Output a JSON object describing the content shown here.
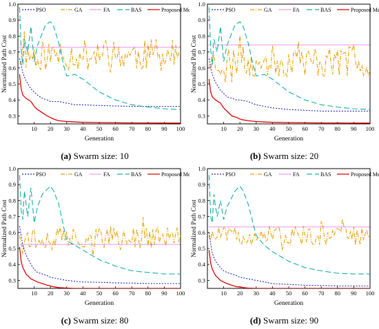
{
  "chart_data": [
    {
      "type": "line",
      "panel_label": "(a)",
      "caption": "Swarm size: 10",
      "xlabel": "Generation",
      "ylabel": "Normalized Path Cost",
      "xlim": [
        0,
        100
      ],
      "ylim": [
        0.25,
        1.0
      ],
      "xticks": [
        10,
        20,
        30,
        40,
        50,
        60,
        70,
        80,
        90,
        100
      ],
      "yticks": [
        0.3,
        0.4,
        0.5,
        0.6,
        0.7,
        0.8,
        0.9,
        1.0
      ],
      "legend_position": "top",
      "series": [
        {
          "name": "PSO",
          "color": "#1f1fbf",
          "dash": "2,2",
          "x": [
            1,
            2,
            3,
            5,
            8,
            10,
            12,
            15,
            18,
            20,
            25,
            30,
            35,
            40,
            50,
            60,
            70,
            80,
            90,
            100
          ],
          "y": [
            0.66,
            0.62,
            0.57,
            0.52,
            0.47,
            0.45,
            0.43,
            0.41,
            0.4,
            0.39,
            0.39,
            0.38,
            0.37,
            0.37,
            0.365,
            0.362,
            0.36,
            0.36,
            0.36,
            0.36
          ]
        },
        {
          "name": "GA",
          "color": "#e8a000",
          "dash": "6,2,1,2",
          "kind": "jagged",
          "start": 0.63,
          "mean": 0.68,
          "amp": 0.1,
          "seed": 11
        },
        {
          "name": "FA",
          "color": "#e040e0",
          "dash": "1,1",
          "x": [
            1,
            100
          ],
          "y": [
            0.73,
            0.73
          ]
        },
        {
          "name": "BAS",
          "color": "#10b0a0",
          "dash": "8,4",
          "x": [
            1,
            2,
            3,
            4,
            5,
            6,
            8,
            10,
            12,
            15,
            17,
            20,
            22,
            25,
            28,
            30,
            35,
            40,
            45,
            50,
            60,
            70,
            80,
            90,
            100
          ],
          "y": [
            0.98,
            0.72,
            0.62,
            0.78,
            0.74,
            0.7,
            0.86,
            0.64,
            0.74,
            0.82,
            0.87,
            0.89,
            0.86,
            0.76,
            0.62,
            0.55,
            0.56,
            0.53,
            0.49,
            0.45,
            0.4,
            0.37,
            0.355,
            0.345,
            0.34
          ]
        },
        {
          "name": "Proposed Method",
          "color": "#e00000",
          "dash": "",
          "x": [
            1,
            2,
            3,
            5,
            8,
            10,
            12,
            15,
            18,
            20,
            22,
            25,
            30,
            35,
            40,
            50,
            60,
            70,
            80,
            90,
            100
          ],
          "y": [
            0.56,
            0.47,
            0.43,
            0.41,
            0.39,
            0.36,
            0.34,
            0.32,
            0.3,
            0.29,
            0.28,
            0.27,
            0.265,
            0.262,
            0.26,
            0.258,
            0.257,
            0.256,
            0.256,
            0.255,
            0.255
          ]
        }
      ]
    },
    {
      "type": "line",
      "panel_label": "(b)",
      "caption": "Swarm size: 20",
      "xlabel": "Generation",
      "ylabel": "Normalized Path Cost",
      "xlim": [
        0,
        100
      ],
      "ylim": [
        0.25,
        1.0
      ],
      "xticks": [
        10,
        20,
        30,
        40,
        50,
        60,
        70,
        80,
        90,
        100
      ],
      "yticks": [
        0.3,
        0.4,
        0.5,
        0.6,
        0.7,
        0.8,
        0.9,
        1.0
      ],
      "legend_position": "top",
      "series": [
        {
          "name": "PSO",
          "color": "#1f1fbf",
          "dash": "2,2",
          "x": [
            1,
            2,
            3,
            5,
            8,
            10,
            12,
            15,
            18,
            20,
            25,
            30,
            35,
            40,
            50,
            60,
            70,
            80,
            90,
            100
          ],
          "y": [
            0.66,
            0.61,
            0.56,
            0.51,
            0.46,
            0.44,
            0.42,
            0.41,
            0.4,
            0.4,
            0.39,
            0.37,
            0.36,
            0.35,
            0.34,
            0.335,
            0.33,
            0.33,
            0.33,
            0.33
          ]
        },
        {
          "name": "GA",
          "color": "#e8a000",
          "dash": "6,2,1,2",
          "kind": "jagged",
          "start": 0.62,
          "mean": 0.64,
          "amp": 0.1,
          "seed": 23
        },
        {
          "name": "FA",
          "color": "#e040e0",
          "dash": "1,1",
          "x": [
            1,
            100
          ],
          "y": [
            0.745,
            0.745
          ]
        },
        {
          "name": "BAS",
          "color": "#10b0a0",
          "dash": "8,4",
          "x": [
            1,
            2,
            3,
            4,
            5,
            6,
            8,
            10,
            12,
            15,
            17,
            20,
            22,
            25,
            28,
            30,
            35,
            40,
            45,
            50,
            60,
            70,
            80,
            90,
            100
          ],
          "y": [
            0.98,
            0.72,
            0.62,
            0.78,
            0.74,
            0.7,
            0.86,
            0.64,
            0.74,
            0.82,
            0.87,
            0.89,
            0.86,
            0.76,
            0.62,
            0.55,
            0.56,
            0.53,
            0.49,
            0.45,
            0.4,
            0.37,
            0.355,
            0.345,
            0.34
          ]
        },
        {
          "name": "Proposed Method",
          "color": "#e00000",
          "dash": "",
          "x": [
            1,
            2,
            3,
            5,
            8,
            10,
            12,
            15,
            18,
            20,
            22,
            25,
            30,
            35,
            40,
            50,
            60,
            70,
            80,
            90,
            100
          ],
          "y": [
            0.53,
            0.45,
            0.42,
            0.4,
            0.38,
            0.35,
            0.33,
            0.3,
            0.29,
            0.28,
            0.275,
            0.27,
            0.265,
            0.262,
            0.26,
            0.258,
            0.257,
            0.256,
            0.256,
            0.255,
            0.255
          ]
        }
      ]
    },
    {
      "type": "line",
      "panel_label": "(c)",
      "caption": "Swarm size: 80",
      "xlabel": "Generation",
      "ylabel": "Normalized Path Cost",
      "xlim": [
        0,
        100
      ],
      "ylim": [
        0.25,
        1.0
      ],
      "xticks": [
        10,
        20,
        30,
        40,
        50,
        60,
        70,
        80,
        90,
        100
      ],
      "yticks": [
        0.3,
        0.4,
        0.5,
        0.6,
        0.7,
        0.8,
        0.9,
        1.0
      ],
      "legend_position": "top",
      "series": [
        {
          "name": "PSO",
          "color": "#1f1fbf",
          "dash": "2,2",
          "x": [
            1,
            2,
            3,
            5,
            8,
            10,
            12,
            15,
            18,
            20,
            25,
            30,
            35,
            40,
            50,
            60,
            70,
            80,
            90,
            100
          ],
          "y": [
            0.64,
            0.58,
            0.52,
            0.46,
            0.4,
            0.37,
            0.35,
            0.34,
            0.33,
            0.32,
            0.31,
            0.3,
            0.295,
            0.29,
            0.288,
            0.285,
            0.283,
            0.28,
            0.28,
            0.28
          ]
        },
        {
          "name": "GA",
          "color": "#e8a000",
          "dash": "6,2,1,2",
          "kind": "jagged",
          "start": 0.58,
          "mean": 0.57,
          "amp": 0.07,
          "seed": 37
        },
        {
          "name": "FA",
          "color": "#e040e0",
          "dash": "1,1",
          "x": [
            1,
            100
          ],
          "y": [
            0.525,
            0.525
          ]
        },
        {
          "name": "BAS",
          "color": "#10b0a0",
          "dash": "8,4",
          "x": [
            1,
            2,
            3,
            4,
            5,
            6,
            8,
            10,
            12,
            15,
            17,
            20,
            22,
            25,
            28,
            30,
            35,
            40,
            45,
            50,
            60,
            70,
            80,
            90,
            100
          ],
          "y": [
            0.96,
            0.74,
            0.68,
            0.86,
            0.78,
            0.7,
            0.88,
            0.66,
            0.76,
            0.84,
            0.86,
            0.89,
            0.86,
            0.78,
            0.64,
            0.55,
            0.52,
            0.49,
            0.46,
            0.43,
            0.39,
            0.36,
            0.35,
            0.34,
            0.34
          ]
        },
        {
          "name": "Proposed Method",
          "color": "#e00000",
          "dash": "",
          "x": [
            1,
            2,
            3,
            5,
            8,
            10,
            12,
            15,
            18,
            20,
            22,
            25,
            30,
            35,
            40,
            50,
            60,
            70,
            80,
            90,
            100
          ],
          "y": [
            0.51,
            0.42,
            0.38,
            0.34,
            0.31,
            0.3,
            0.29,
            0.28,
            0.27,
            0.265,
            0.26,
            0.255,
            0.252,
            0.25,
            0.25,
            0.25,
            0.25,
            0.25,
            0.25,
            0.25,
            0.25
          ]
        }
      ]
    },
    {
      "type": "line",
      "panel_label": "(d)",
      "caption": "Swarm size: 90",
      "xlabel": "Generation",
      "ylabel": "Normalized Path Cost",
      "xlim": [
        0,
        100
      ],
      "ylim": [
        0.25,
        1.0
      ],
      "xticks": [
        10,
        20,
        30,
        40,
        50,
        60,
        70,
        80,
        90,
        100
      ],
      "yticks": [
        0.3,
        0.4,
        0.5,
        0.6,
        0.7,
        0.8,
        0.9,
        1.0
      ],
      "legend_position": "top",
      "series": [
        {
          "name": "PSO",
          "color": "#1f1fbf",
          "dash": "2,2",
          "x": [
            1,
            2,
            3,
            5,
            8,
            10,
            12,
            15,
            18,
            20,
            25,
            30,
            35,
            40,
            50,
            60,
            70,
            80,
            90,
            100
          ],
          "y": [
            0.6,
            0.53,
            0.47,
            0.42,
            0.38,
            0.36,
            0.35,
            0.34,
            0.33,
            0.32,
            0.31,
            0.3,
            0.29,
            0.28,
            0.275,
            0.27,
            0.268,
            0.265,
            0.265,
            0.265
          ]
        },
        {
          "name": "GA",
          "color": "#e8a000",
          "dash": "6,2,1,2",
          "kind": "jagged",
          "start": 0.58,
          "mean": 0.58,
          "amp": 0.06,
          "seed": 51
        },
        {
          "name": "FA",
          "color": "#e040e0",
          "dash": "1,1",
          "x": [
            1,
            100
          ],
          "y": [
            0.635,
            0.635
          ]
        },
        {
          "name": "BAS",
          "color": "#10b0a0",
          "dash": "8,4",
          "x": [
            1,
            2,
            3,
            4,
            5,
            6,
            8,
            10,
            12,
            15,
            17,
            20,
            22,
            25,
            28,
            30,
            35,
            40,
            45,
            50,
            60,
            70,
            80,
            90,
            100
          ],
          "y": [
            0.96,
            0.7,
            0.66,
            0.84,
            0.76,
            0.7,
            0.8,
            0.68,
            0.76,
            0.82,
            0.86,
            0.89,
            0.86,
            0.78,
            0.66,
            0.58,
            0.52,
            0.48,
            0.45,
            0.42,
            0.38,
            0.36,
            0.345,
            0.34,
            0.34
          ]
        },
        {
          "name": "Proposed Method",
          "color": "#e00000",
          "dash": "",
          "x": [
            1,
            2,
            3,
            5,
            8,
            10,
            12,
            15,
            18,
            20,
            22,
            25,
            30,
            35,
            40,
            50,
            60,
            70,
            80,
            90,
            100
          ],
          "y": [
            0.49,
            0.41,
            0.37,
            0.33,
            0.3,
            0.29,
            0.28,
            0.27,
            0.26,
            0.26,
            0.255,
            0.252,
            0.25,
            0.25,
            0.25,
            0.25,
            0.25,
            0.25,
            0.25,
            0.25,
            0.25
          ]
        }
      ]
    }
  ]
}
